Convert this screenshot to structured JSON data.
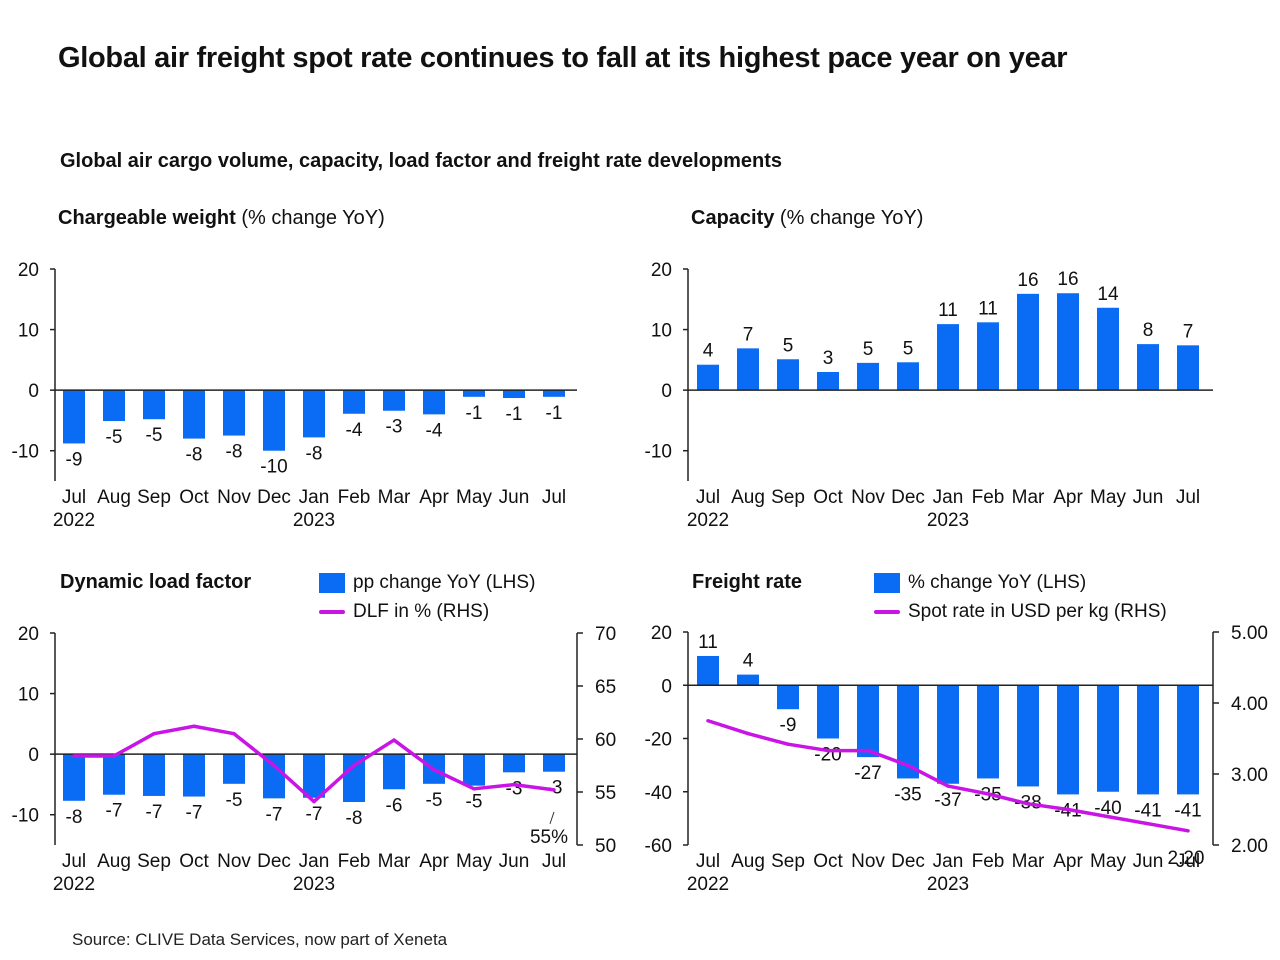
{
  "title": "Global air freight spot rate continues to fall at its highest pace year on year",
  "subtitle": "Global air cargo volume, capacity, load factor and freight rate developments",
  "source": "Source: CLIVE Data Services, now part of Xeneta",
  "colors": {
    "bar": "#0a6cf5",
    "line": "#c914e6",
    "axis": "#222222"
  },
  "panels": {
    "chargeable_weight": {
      "title_bold": "Chargeable weight",
      "title_rest": " (% change YoY)"
    },
    "capacity": {
      "title_bold": "Capacity",
      "title_rest": " (% change YoY)"
    },
    "load_factor": {
      "title_bold": "Dynamic load factor",
      "legend_bar": "pp change YoY (LHS)",
      "legend_line": "DLF in % (RHS)"
    },
    "freight_rate": {
      "title_bold": "Freight rate",
      "legend_bar": "% change YoY (LHS)",
      "legend_line": "Spot rate in USD per kg (RHS)"
    }
  },
  "chart_data": [
    {
      "id": "chargeable_weight",
      "type": "bar",
      "title": "Chargeable weight (% change YoY)",
      "categories": [
        "Jul",
        "Aug",
        "Sep",
        "Oct",
        "Nov",
        "Dec",
        "Jan",
        "Feb",
        "Mar",
        "Apr",
        "May",
        "Jun",
        "Jul"
      ],
      "year_labels": [
        {
          "index": 0,
          "label": "2022"
        },
        {
          "index": 6,
          "label": "2023"
        }
      ],
      "values": [
        -8.8,
        -5.1,
        -4.8,
        -8.0,
        -7.5,
        -10.0,
        -7.8,
        -3.9,
        -3.4,
        -4.0,
        -1.1,
        -1.3,
        -1.1
      ],
      "data_labels": [
        "-9",
        "-5",
        "-5",
        "-8",
        "-8",
        "-10",
        "-8",
        "-4",
        "-3",
        "-4",
        "-1",
        "-1",
        "-1"
      ],
      "ylim": [
        -15,
        20
      ],
      "yticks": [
        -10,
        0,
        10,
        20
      ]
    },
    {
      "id": "capacity",
      "type": "bar",
      "title": "Capacity (% change YoY)",
      "categories": [
        "Jul",
        "Aug",
        "Sep",
        "Oct",
        "Nov",
        "Dec",
        "Jan",
        "Feb",
        "Mar",
        "Apr",
        "May",
        "Jun",
        "Jul"
      ],
      "year_labels": [
        {
          "index": 0,
          "label": "2022"
        },
        {
          "index": 6,
          "label": "2023"
        }
      ],
      "values": [
        4.2,
        6.9,
        5.1,
        3.0,
        4.5,
        4.6,
        10.9,
        11.2,
        15.9,
        16.0,
        13.6,
        7.6,
        7.4
      ],
      "data_labels": [
        "4",
        "7",
        "5",
        "3",
        "5",
        "5",
        "11",
        "11",
        "16",
        "16",
        "14",
        "8",
        "7"
      ],
      "ylim": [
        -15,
        20
      ],
      "yticks": [
        -10,
        0,
        10,
        20
      ]
    },
    {
      "id": "load_factor",
      "type": "bar+line",
      "title": "Dynamic load factor",
      "categories": [
        "Jul",
        "Aug",
        "Sep",
        "Oct",
        "Nov",
        "Dec",
        "Jan",
        "Feb",
        "Mar",
        "Apr",
        "May",
        "Jun",
        "Jul"
      ],
      "year_labels": [
        {
          "index": 0,
          "label": "2022"
        },
        {
          "index": 6,
          "label": "2023"
        }
      ],
      "series": [
        {
          "name": "pp change YoY (LHS)",
          "axis": "left",
          "values": [
            -7.7,
            -6.7,
            -6.9,
            -7.0,
            -4.9,
            -7.3,
            -7.2,
            -7.9,
            -5.8,
            -4.9,
            -5.2,
            -3.0,
            -2.9
          ],
          "data_labels": [
            "-8",
            "-7",
            "-7",
            "-7",
            "-5",
            "-7",
            "-7",
            "-8",
            "-6",
            "-5",
            "-5",
            "-3",
            "-3"
          ]
        },
        {
          "name": "DLF in % (RHS)",
          "axis": "right",
          "values": [
            58.4,
            58.4,
            60.5,
            61.2,
            60.5,
            57.5,
            54.1,
            57.5,
            59.9,
            57.1,
            55.3,
            55.7,
            55.2
          ],
          "end_label": "55%"
        }
      ],
      "ylim_left": [
        -15,
        20
      ],
      "yticks_left": [
        -10,
        0,
        10,
        20
      ],
      "ylim_right": [
        50,
        70
      ],
      "yticks_right": [
        50,
        55,
        60,
        65,
        70
      ]
    },
    {
      "id": "freight_rate",
      "type": "bar+line",
      "title": "Freight rate",
      "categories": [
        "Jul",
        "Aug",
        "Sep",
        "Oct",
        "Nov",
        "Dec",
        "Jan",
        "Feb",
        "Mar",
        "Apr",
        "May",
        "Jun",
        "Jul"
      ],
      "year_labels": [
        {
          "index": 0,
          "label": "2022"
        },
        {
          "index": 6,
          "label": "2023"
        }
      ],
      "series": [
        {
          "name": "% change YoY (LHS)",
          "axis": "left",
          "values": [
            11,
            4,
            -9,
            -20,
            -27,
            -35,
            -37,
            -35,
            -38,
            -41,
            -40,
            -41,
            -41
          ],
          "data_labels": [
            "11",
            "4",
            "-9",
            "-20",
            "-27",
            "-35",
            "-37",
            "-35",
            "-38",
            "-41",
            "-40",
            "-41",
            "-41"
          ]
        },
        {
          "name": "Spot rate in USD per kg (RHS)",
          "axis": "right",
          "values": [
            3.75,
            3.57,
            3.42,
            3.33,
            3.33,
            3.12,
            2.83,
            2.72,
            2.58,
            2.5,
            2.4,
            2.3,
            2.2
          ],
          "end_label": "2.20"
        }
      ],
      "ylim_left": [
        -60,
        20
      ],
      "yticks_left": [
        -60,
        -40,
        -20,
        0,
        20
      ],
      "ylim_right": [
        2.0,
        5.0
      ],
      "yticks_right": [
        "2.00",
        "3.00",
        "4.00",
        "5.00"
      ]
    }
  ]
}
